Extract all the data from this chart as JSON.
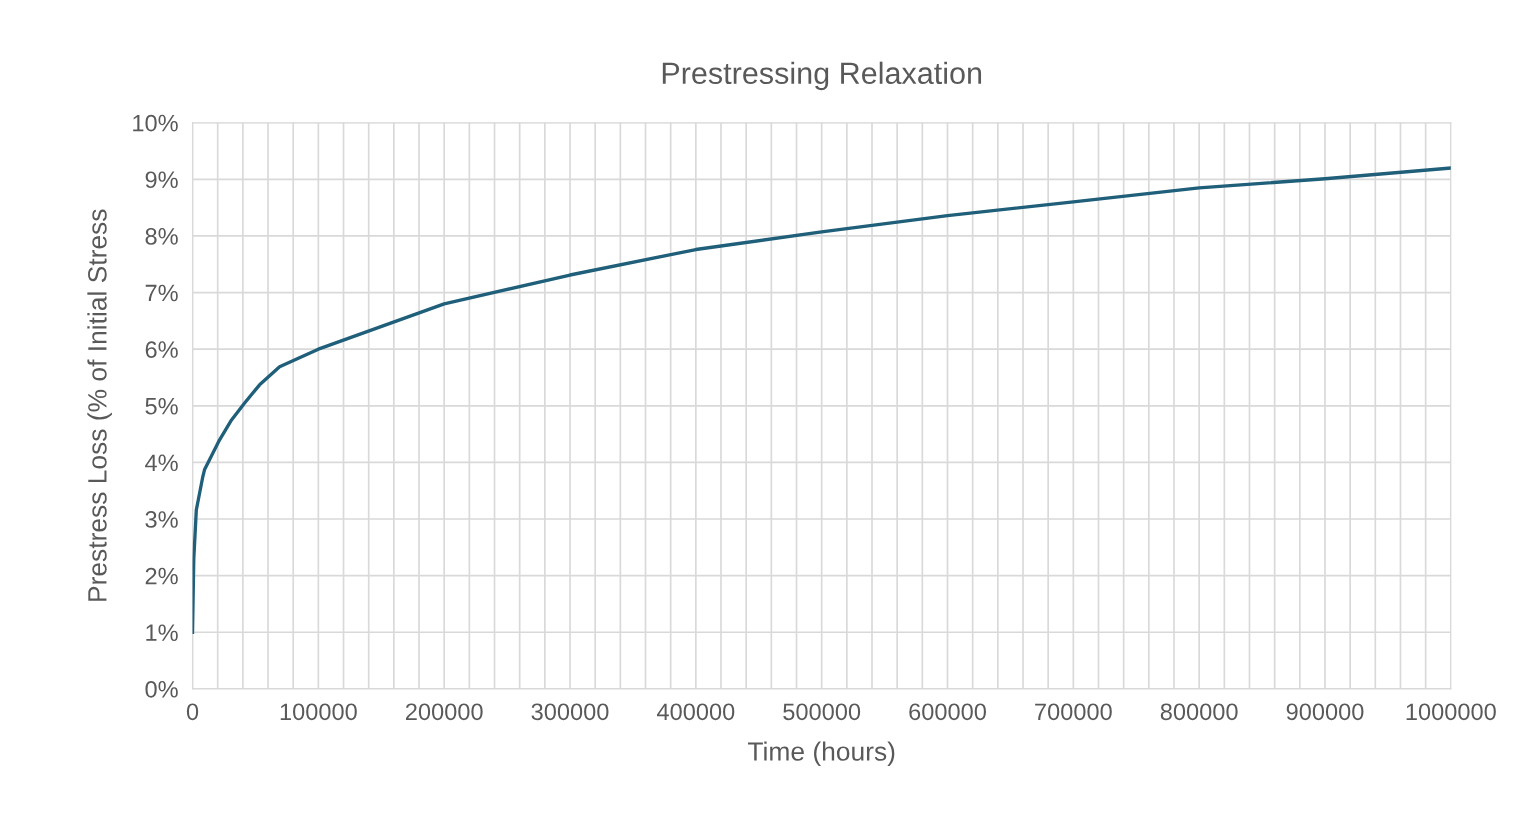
{
  "chart_data": {
    "type": "line",
    "title": "Prestressing Relaxation",
    "xlabel": "Time (hours)",
    "ylabel": "Prestress Loss (% of Initial Stress",
    "x": [
      0,
      1000,
      3000,
      8000,
      9500,
      21500,
      31000,
      41400,
      53300,
      69200,
      85000,
      100000,
      200000,
      300000,
      400000,
      500000,
      600000,
      700000,
      800000,
      900000,
      1000000
    ],
    "series": [
      {
        "color": "#1f5f7a",
        "values": [
          1.0,
          2.3,
          3.16,
          3.73,
          3.87,
          4.4,
          4.75,
          5.05,
          5.37,
          5.69,
          5.85,
          6.0,
          6.8,
          7.31,
          7.76,
          8.07,
          8.36,
          8.6,
          8.85,
          9.01,
          9.2
        ]
      }
    ],
    "xlim": [
      0,
      1000000
    ],
    "xticks": [
      0,
      {
        "value": 20000,
        "label": null
      },
      {
        "value": 40000,
        "label": null
      },
      {
        "value": 60000,
        "label": null
      },
      {
        "value": 80000,
        "label": null
      },
      100000,
      {
        "value": 120000,
        "label": null
      },
      {
        "value": 140000,
        "label": null
      },
      {
        "value": 160000,
        "label": null
      },
      {
        "value": 180000,
        "label": null
      },
      200000,
      {
        "value": 220000,
        "label": null
      },
      {
        "value": 240000,
        "label": null
      },
      {
        "value": 260000,
        "label": null
      },
      {
        "value": 280000,
        "label": null
      },
      300000,
      {
        "value": 320000,
        "label": null
      },
      {
        "value": 340000,
        "label": null
      },
      {
        "value": 360000,
        "label": null
      },
      {
        "value": 380000,
        "label": null
      },
      400000,
      {
        "value": 420000,
        "label": null
      },
      {
        "value": 440000,
        "label": null
      },
      {
        "value": 460000,
        "label": null
      },
      {
        "value": 480000,
        "label": null
      },
      500000,
      {
        "value": 520000,
        "label": null
      },
      {
        "value": 540000,
        "label": null
      },
      {
        "value": 560000,
        "label": null
      },
      {
        "value": 580000,
        "label": null
      },
      600000,
      {
        "value": 620000,
        "label": null
      },
      {
        "value": 640000,
        "label": null
      },
      {
        "value": 660000,
        "label": null
      },
      {
        "value": 680000,
        "label": null
      },
      700000,
      {
        "value": 720000,
        "label": null
      },
      {
        "value": 740000,
        "label": null
      },
      {
        "value": 760000,
        "label": null
      },
      {
        "value": 780000,
        "label": null
      },
      800000,
      {
        "value": 820000,
        "label": null
      },
      {
        "value": 840000,
        "label": null
      },
      {
        "value": 860000,
        "label": null
      },
      {
        "value": 880000,
        "label": null
      },
      900000,
      {
        "value": 920000,
        "label": null
      },
      {
        "value": 940000,
        "label": null
      },
      {
        "value": 960000,
        "label": null
      },
      {
        "value": 980000,
        "label": null
      },
      1000000
    ],
    "ylim": [
      0,
      10
    ],
    "yticks": [
      {
        "value": 0,
        "label": "0%"
      },
      {
        "value": 1,
        "label": "1%"
      },
      {
        "value": 2,
        "label": "2%"
      },
      {
        "value": 3,
        "label": "3%"
      },
      {
        "value": 4,
        "label": "4%"
      },
      {
        "value": 5,
        "label": "5%"
      },
      {
        "value": 6,
        "label": "6%"
      },
      {
        "value": 7,
        "label": "7%"
      },
      {
        "value": 8,
        "label": "8%"
      },
      {
        "value": 9,
        "label": "9%"
      },
      {
        "value": 10,
        "label": "10%"
      }
    ],
    "grid": true,
    "marker": "none",
    "line_style": "solid"
  }
}
